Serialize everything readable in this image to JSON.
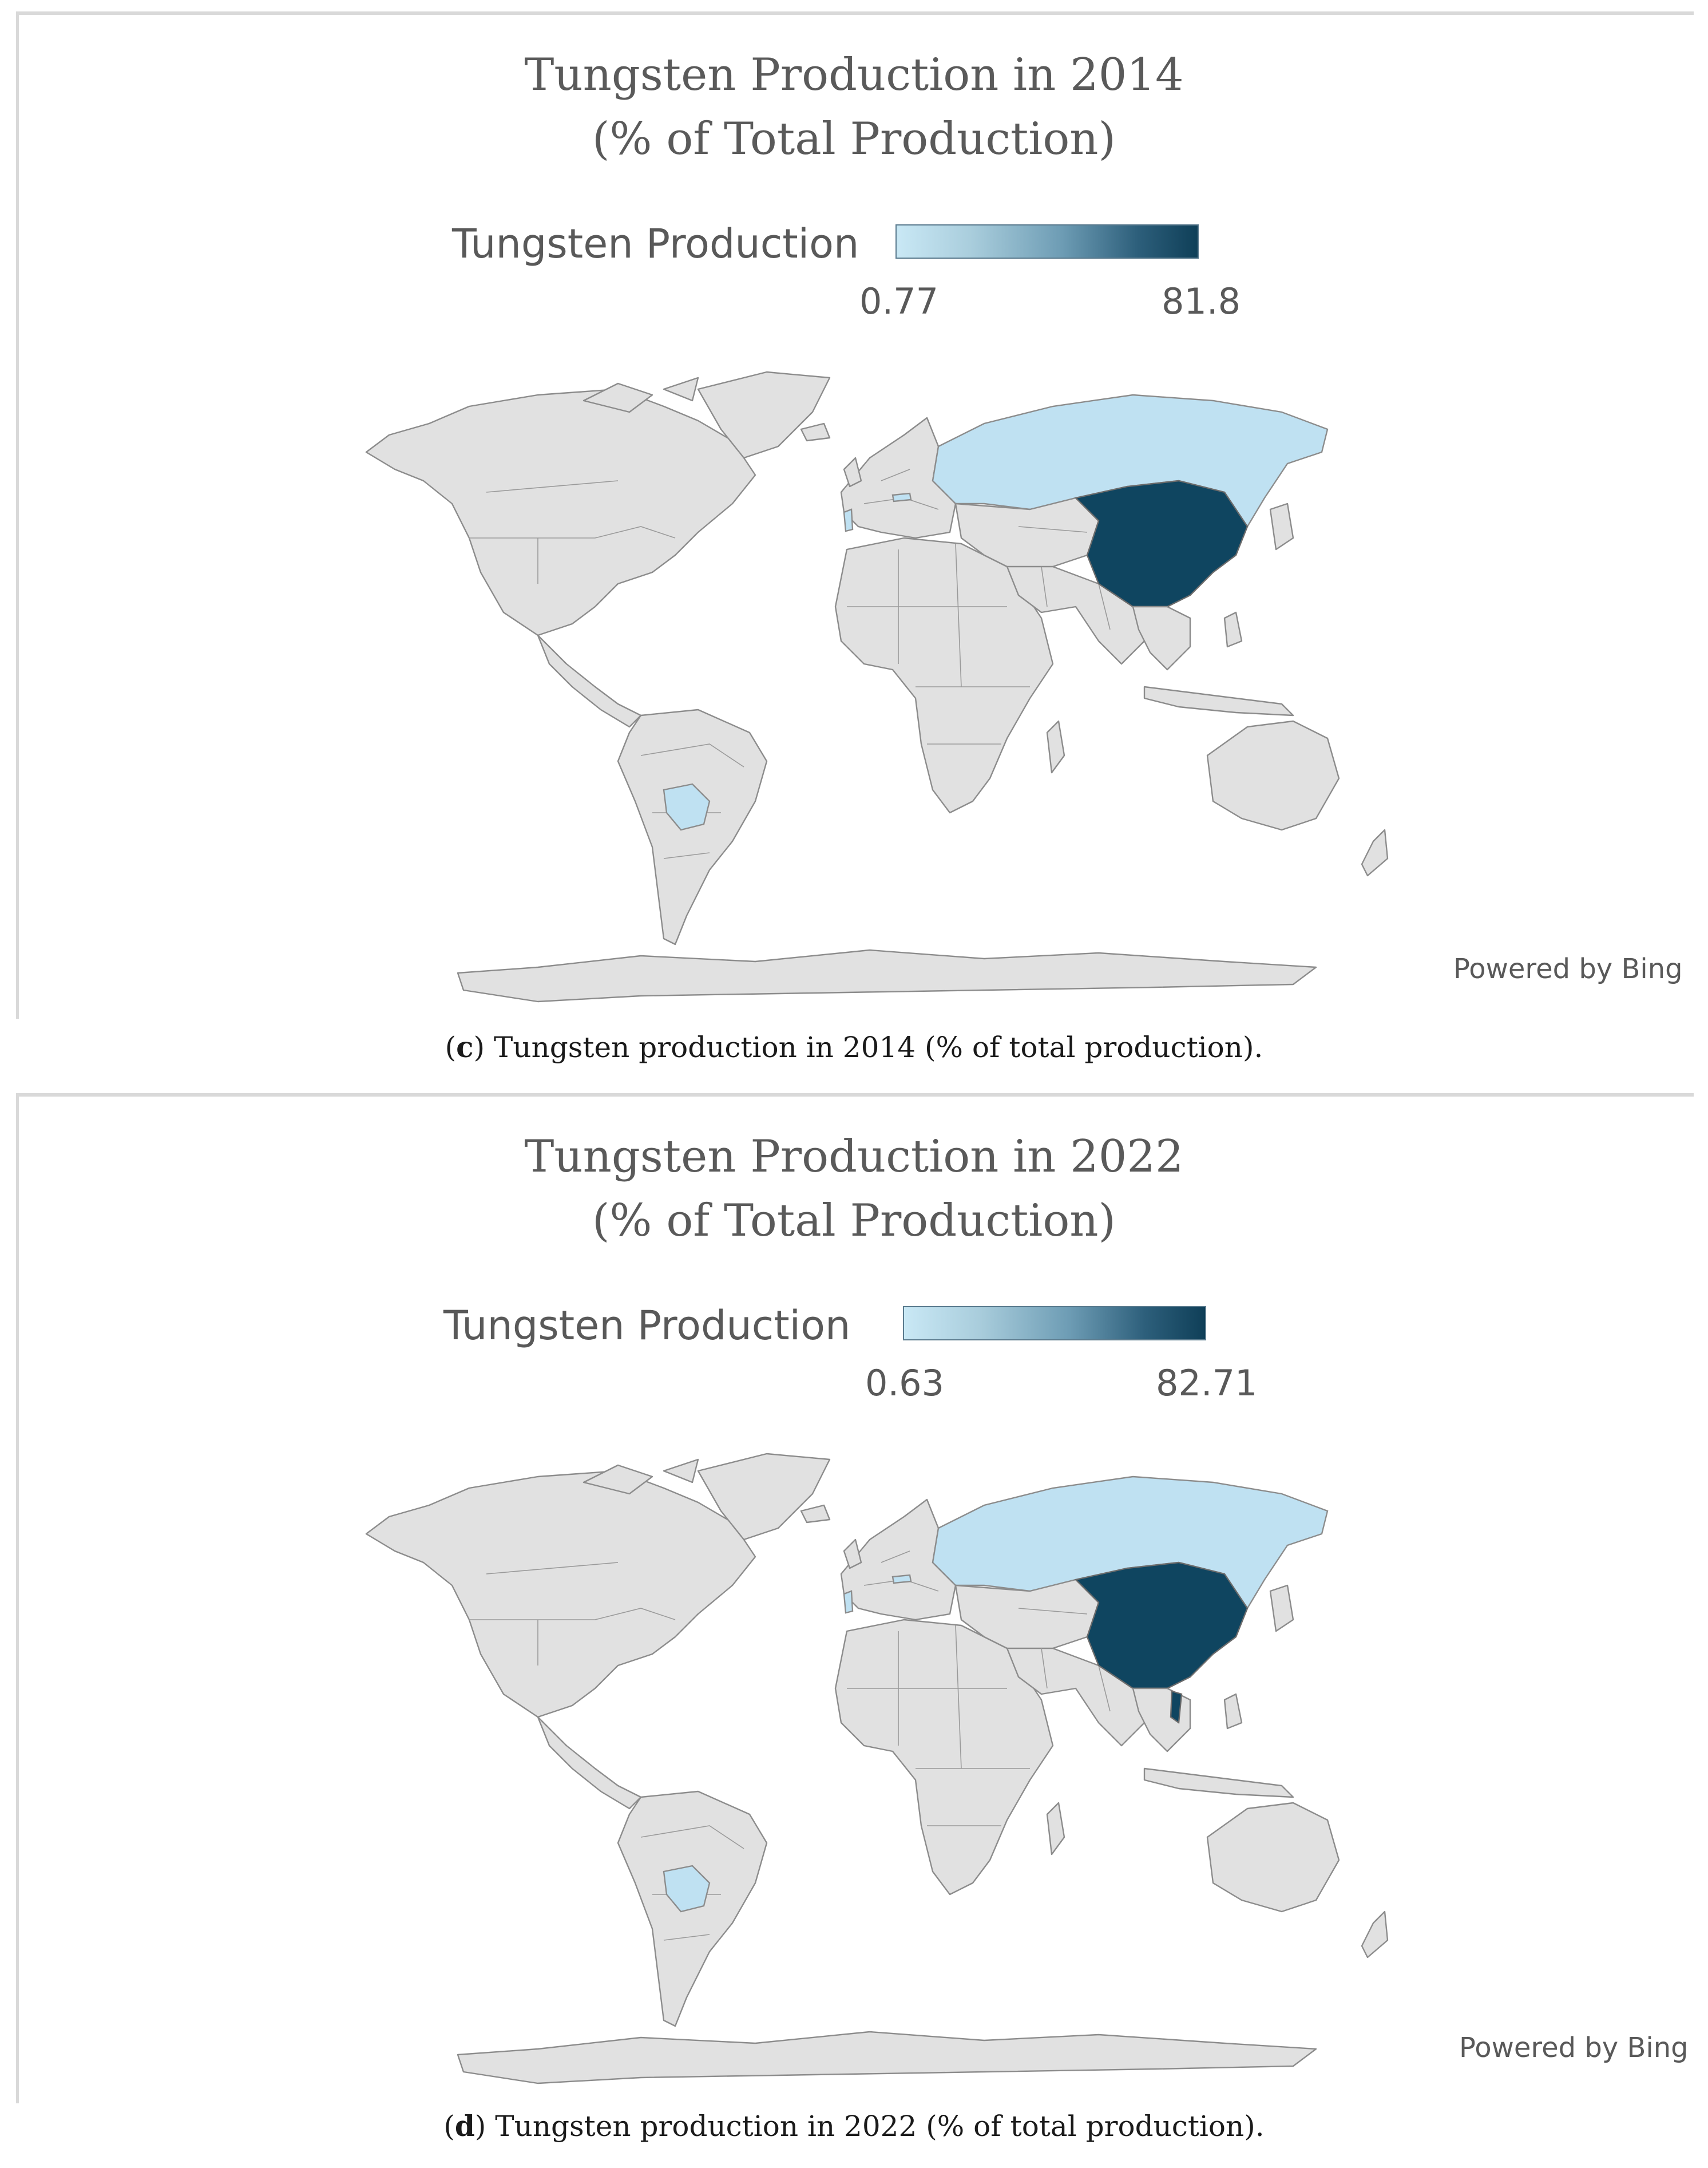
{
  "panels": [
    {
      "title_line1": "Tungsten Production in 2014",
      "title_line2": "(% of Total Production)",
      "legend_title": "Tungsten Production",
      "legend_min": "0.77",
      "legend_max": "81.8",
      "attribution": "Powered by Bing",
      "caption_label": "c",
      "caption_text": "Tungsten production in 2014 (% of total production).",
      "colors": {
        "low": "#bfe1f2",
        "high": "#0f4560",
        "no_data": "#e1e1e1"
      },
      "highlighted_regions": [
        {
          "country": "China",
          "shade": "high"
        },
        {
          "country": "Russia",
          "shade": "low"
        },
        {
          "country": "Bolivia",
          "shade": "low"
        },
        {
          "country": "Portugal",
          "shade": "low"
        },
        {
          "country": "Austria",
          "shade": "low"
        }
      ]
    },
    {
      "title_line1": "Tungsten Production in 2022",
      "title_line2": "(% of Total Production)",
      "legend_title": "Tungsten Production",
      "legend_min": "0.63",
      "legend_max": "82.71",
      "attribution": "Powered by Bing",
      "caption_label": "d",
      "caption_text": "Tungsten production in 2022 (% of total production).",
      "colors": {
        "low": "#bfe1f2",
        "high": "#0f4560",
        "no_data": "#e1e1e1"
      },
      "highlighted_regions": [
        {
          "country": "China",
          "shade": "high"
        },
        {
          "country": "Russia",
          "shade": "low"
        },
        {
          "country": "Bolivia",
          "shade": "low"
        },
        {
          "country": "Portugal",
          "shade": "low"
        },
        {
          "country": "Austria",
          "shade": "low"
        },
        {
          "country": "Vietnam",
          "shade": "high"
        }
      ]
    }
  ]
}
